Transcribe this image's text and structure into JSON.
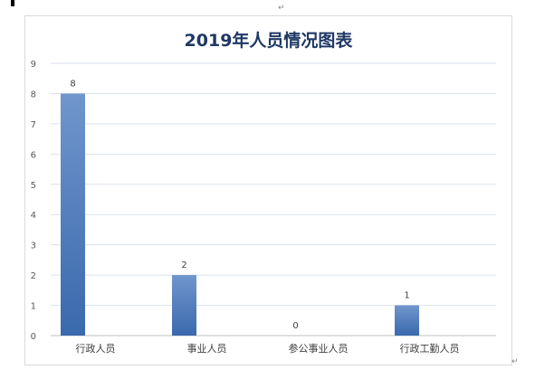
{
  "chart_data": {
    "type": "bar",
    "title": "2019年人员情况图表",
    "xlabel": "",
    "ylabel": "",
    "categories": [
      "行政人员",
      "事业人员",
      "参公事业人员",
      "行政工勤人员"
    ],
    "values": [
      8,
      2,
      0,
      1
    ],
    "ylim": [
      0,
      9
    ],
    "yticks": [
      "0",
      "1",
      "2",
      "3",
      "4",
      "5",
      "6",
      "7",
      "8",
      "9"
    ],
    "data_labels": [
      "8",
      "2",
      "0",
      "1"
    ],
    "grid": true,
    "legend": "none",
    "bar_color_top": "#7096cc",
    "bar_color_bottom": "#3a69ad",
    "grid_color": "#d9e2ec"
  },
  "marks": {
    "paragraph_mark": "↵"
  }
}
